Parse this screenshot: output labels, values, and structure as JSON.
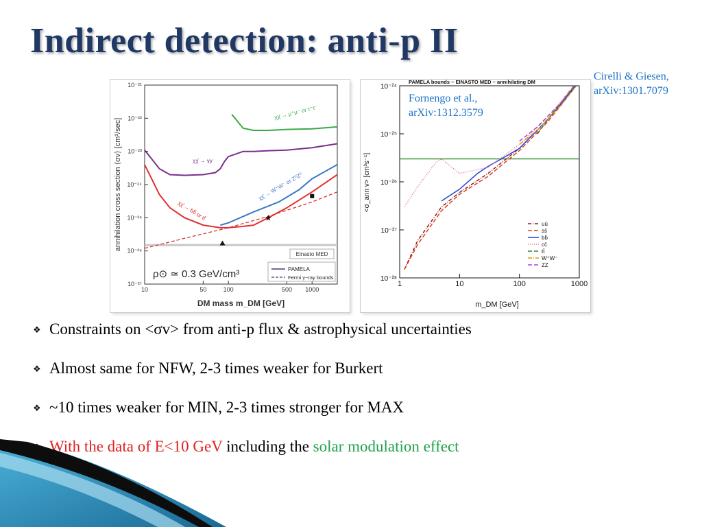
{
  "slide": {
    "title": "Indirect detection: anti-p II",
    "citation_right": {
      "line1": "Cirelli & Giesen,",
      "line2": "arXiv:1301.7079"
    },
    "citation_mid": {
      "line1": "Fornengo et al.,",
      "line2": "arXiv:1312.3579"
    },
    "bullets": [
      {
        "text": "Constraints on <σv> from anti-p flux & astrophysical uncertainties"
      },
      {
        "text": "Almost same for NFW, 2-3 times weaker for Burkert"
      },
      {
        "text": "~10 times weaker for MIN, 2-3 times stronger for MAX"
      },
      {
        "part1": "With the data of E<10 GeV",
        "part2": " including the ",
        "part3": "solar modulation effect"
      }
    ],
    "colors": {
      "title": "#1f3864",
      "citation": "#1a73c8",
      "highlight_red": "#e02020",
      "highlight_green": "#1ea34a"
    }
  },
  "chart_data": [
    {
      "type": "line",
      "xlabel": "DM mass m_DM  [GeV]",
      "ylabel": "annihilation cross section ⟨σv⟩ [cm³/sec]",
      "x_scale": "log",
      "y_scale": "log",
      "xlim": [
        10,
        2000
      ],
      "ylim": [
        1e-27,
        1e-21
      ],
      "x_ticks": [
        "10",
        "50",
        "100",
        "500",
        "1000"
      ],
      "y_ticks": [
        "10⁻²¹",
        "10⁻²²",
        "10⁻²³",
        "10⁻²⁴",
        "10⁻²⁵",
        "10⁻²⁶",
        "10⁻²⁷"
      ],
      "annotation_box": "Einasto MED",
      "annotation_rho": "ρ⊙ ≃ 0.3 GeV/cm³",
      "legend": [
        {
          "name": "PAMELA",
          "style": "solid"
        },
        {
          "name": "Fermi γ−ray bounds",
          "style": "dashed"
        }
      ],
      "curve_labels": {
        "mumu": "χχ̄ → μ⁺μ⁻  or τ⁺τ⁻",
        "gg": "χχ̄ → γγ",
        "ww": "χχ̄ → W⁺W⁻  or Z⁰Z⁰",
        "bb": "χχ̄ → bb̄  or tt̄"
      },
      "series": [
        {
          "key": "mumu",
          "color": "#3aa845",
          "x": [
            110,
            150,
            200,
            300,
            500,
            1000,
            2000
          ],
          "y": [
            1.3e-22,
            5e-23,
            4.3e-23,
            4.3e-23,
            4.6e-23,
            4.8e-23,
            5.5e-23
          ]
        },
        {
          "key": "gg",
          "color": "#7a2e8c",
          "x": [
            10,
            15,
            20,
            30,
            50,
            70,
            80,
            90,
            100,
            150,
            200,
            300,
            500,
            1000,
            2000
          ],
          "y": [
            1.1e-23,
            3e-24,
            2e-24,
            1.9e-24,
            2e-24,
            2.3e-24,
            3e-24,
            5e-24,
            7e-24,
            1e-23,
            1e-23,
            1.05e-23,
            1.1e-23,
            1.3e-23,
            1.7e-23
          ]
        },
        {
          "key": "ww",
          "color": "#3a78c8",
          "x": [
            80,
            100,
            200,
            400,
            700,
            1000,
            2000
          ],
          "y": [
            6e-26,
            7e-26,
            1.5e-25,
            3e-25,
            7e-25,
            1.5e-24,
            4e-24
          ]
        },
        {
          "key": "bb",
          "color": "#e03030",
          "x": [
            10,
            15,
            20,
            30,
            50,
            80,
            100,
            150,
            200,
            300,
            500,
            1000,
            2000
          ],
          "y": [
            4e-24,
            5e-25,
            2e-25,
            1e-25,
            6e-26,
            5e-26,
            5e-26,
            5.5e-26,
            6e-26,
            1e-25,
            2e-25,
            6e-25,
            2e-24
          ]
        },
        {
          "key": "fermi",
          "color": "#e03030",
          "dashed": true,
          "x": [
            10,
            30,
            100,
            300,
            1000,
            2000
          ],
          "y": [
            1.2e-26,
            2.4e-26,
            5e-26,
            1.1e-25,
            3e-25,
            6e-25
          ]
        }
      ],
      "hline": 1.5e-26,
      "markers": [
        {
          "shape": "triangle",
          "x": 85,
          "y": 1.7e-26
        },
        {
          "shape": "star",
          "x": 300,
          "y": 1e-25
        },
        {
          "shape": "square",
          "x": 1000,
          "y": 4.5e-25
        }
      ]
    },
    {
      "type": "line",
      "title": "PAMELA bounds − EINASTO MED − annihilating DM",
      "xlabel": "m_DM  [GeV]",
      "ylabel": "<σ_ann v>  [cm³s⁻¹]",
      "x_scale": "log",
      "y_scale": "log",
      "xlim": [
        1,
        1000
      ],
      "ylim": [
        1e-28,
        1e-24
      ],
      "x_ticks": [
        "1",
        "10",
        "100",
        "1000"
      ],
      "y_ticks": [
        "10⁻²⁴",
        "10⁻²⁵",
        "10⁻²⁶",
        "10⁻²⁷",
        "10⁻²⁸"
      ],
      "hline": 3e-26,
      "series": [
        {
          "name": "uū",
          "color": "#8b1a1a",
          "dash": "5,2,1,2",
          "x": [
            1.2,
            2,
            5,
            10,
            30,
            100,
            300,
            1000
          ],
          "y": [
            1.5e-28,
            6e-28,
            3e-27,
            6e-27,
            1.5e-26,
            5e-26,
            2e-25,
            1.3e-24
          ]
        },
        {
          "name": "ss̄",
          "color": "#e03c1e",
          "dash": "6,3",
          "x": [
            1.2,
            2,
            5,
            10,
            30,
            100,
            300,
            1000
          ],
          "y": [
            1.5e-28,
            5e-28,
            2.5e-27,
            5.5e-27,
            1.3e-26,
            4.5e-26,
            1.8e-25,
            1.2e-24
          ]
        },
        {
          "name": "bb̄",
          "color": "#2040e0",
          "dash": "",
          "x": [
            5,
            10,
            20,
            30,
            50,
            100,
            300,
            1000
          ],
          "y": [
            4e-27,
            7e-27,
            1.5e-26,
            2.1e-26,
            3e-26,
            5e-26,
            2e-25,
            1.2e-24
          ]
        },
        {
          "name": "cc̄",
          "color": "#e07070",
          "dash": "1,2",
          "x": [
            1.2,
            2,
            4,
            5,
            10,
            30,
            100,
            300,
            1000
          ],
          "y": [
            3e-27,
            8e-27,
            2.5e-26,
            3e-26,
            1.5e-26,
            2e-26,
            6e-26,
            2.2e-25,
            1.4e-24
          ]
        },
        {
          "name": "tt̄",
          "color": "#2a8a2a",
          "dash": "6,3",
          "x": [
            200,
            300,
            500,
            1000
          ],
          "y": [
            1e-25,
            2e-25,
            4.5e-25,
            1.3e-24
          ]
        },
        {
          "name": "W⁺W⁻",
          "color": "#d99a00",
          "dash": "6,2,1,2",
          "x": [
            100,
            200,
            500,
            1000
          ],
          "y": [
            6e-26,
            1.2e-25,
            4e-25,
            1.2e-24
          ]
        },
        {
          "name": "ZZ",
          "color": "#b040d0",
          "dash": "6,3",
          "x": [
            100,
            200,
            500,
            1000
          ],
          "y": [
            7e-26,
            1.4e-25,
            4.5e-25,
            1.4e-24
          ]
        }
      ]
    }
  ]
}
